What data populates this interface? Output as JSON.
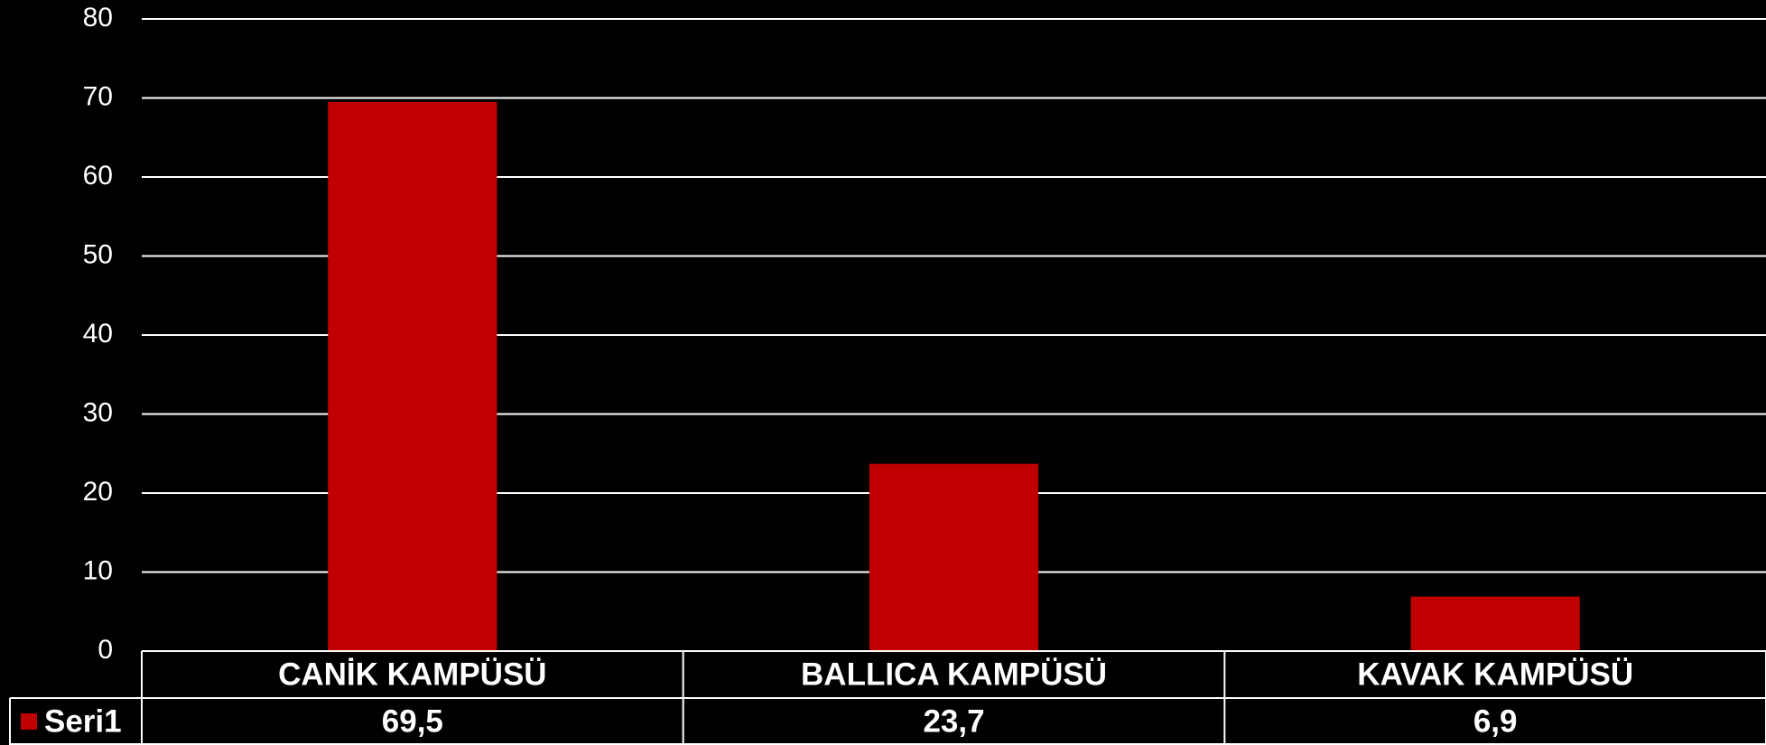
{
  "chart_data": {
    "type": "bar",
    "categories": [
      "CANİK KAMPÜSÜ",
      "BALLICA KAMPÜSÜ",
      "KAVAK KAMPÜSÜ"
    ],
    "series": [
      {
        "name": "Seri1",
        "color": "#c00000",
        "values": [
          69.5,
          23.7,
          6.9
        ],
        "value_labels": [
          "69,5",
          "23,7",
          "6,9"
        ]
      }
    ],
    "ylim": [
      0,
      80
    ],
    "yticks": [
      0,
      10,
      20,
      30,
      40,
      50,
      60,
      70,
      80
    ],
    "grid": true,
    "data_table": true
  }
}
